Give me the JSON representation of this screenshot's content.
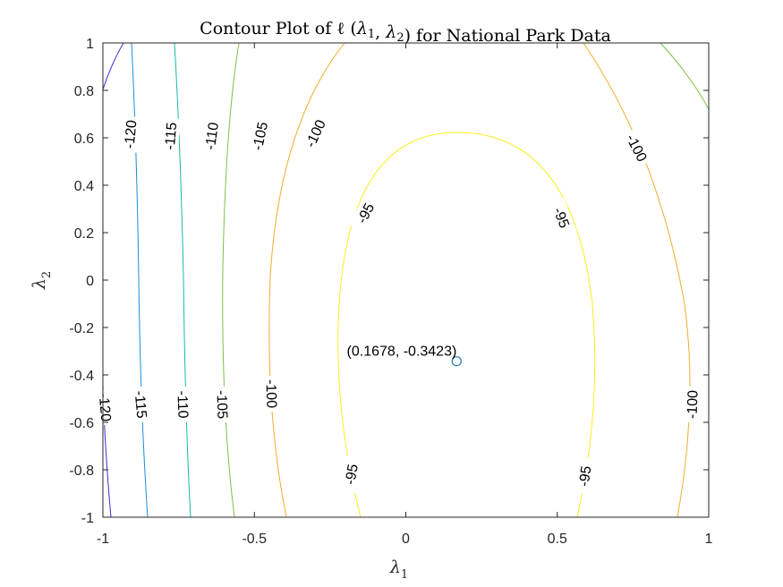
{
  "chart_data": {
    "type": "contour",
    "title": "Contour Plot of ℓ (λ1, λ2) for National Park Data",
    "xlabel": "λ1",
    "ylabel": "λ2",
    "xlim": [
      -1,
      1
    ],
    "ylim": [
      -1,
      1
    ],
    "xticks": [
      "-1",
      "-0.5",
      "0",
      "0.5",
      "1"
    ],
    "yticks": [
      "-1",
      "-0.8",
      "-0.6",
      "-0.4",
      "-0.2",
      "0",
      "0.2",
      "0.4",
      "0.6",
      "0.8",
      "1"
    ],
    "grid": false,
    "maximum": {
      "x": 0.1678,
      "y": -0.3423,
      "label": "(0.1678, -0.3423)"
    },
    "levels": [
      {
        "value": -120,
        "color": "#3b2ccf",
        "labels": [
          "-120",
          "-120"
        ]
      },
      {
        "value": -115,
        "color": "#1a8fd6",
        "labels": [
          "-115",
          "-115"
        ]
      },
      {
        "value": -110,
        "color": "#16bba6",
        "labels": [
          "-110",
          "-110"
        ]
      },
      {
        "value": -105,
        "color": "#7cc04a",
        "labels": [
          "-105",
          "-105"
        ]
      },
      {
        "value": -100,
        "color": "#f0ae2c",
        "labels": [
          "-100",
          "-100",
          "-100",
          "-100"
        ]
      },
      {
        "value": -95,
        "color": "#f6f01c",
        "labels": [
          "-95",
          "-95",
          "-95",
          "-95"
        ]
      },
      {
        "value": -100,
        "color": "#7cc04a",
        "labels": []
      }
    ]
  }
}
